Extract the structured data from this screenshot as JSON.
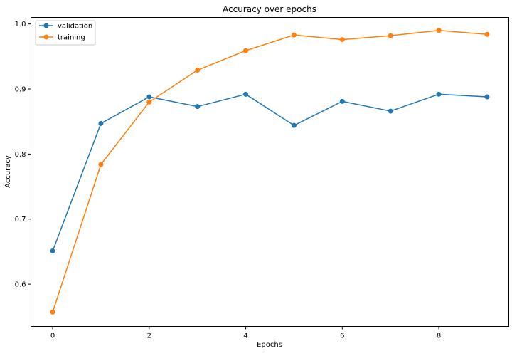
{
  "chart_data": {
    "type": "line",
    "title": "Accuracy over epochs",
    "xlabel": "Epochs",
    "ylabel": "Accuracy",
    "x": [
      0,
      1,
      2,
      3,
      4,
      5,
      6,
      7,
      8,
      9
    ],
    "xlim": [
      -0.45,
      9.45
    ],
    "ylim": [
      0.535,
      1.01
    ],
    "xticks": [
      0,
      2,
      4,
      6,
      8
    ],
    "yticks": [
      0.6,
      0.7,
      0.8,
      0.9,
      1.0
    ],
    "grid": false,
    "legend_position": "top-left",
    "series": [
      {
        "name": "validation",
        "color": "#1f77b4",
        "marker": "circle",
        "values": [
          0.651,
          0.847,
          0.888,
          0.873,
          0.892,
          0.844,
          0.881,
          0.866,
          0.892,
          0.888
        ]
      },
      {
        "name": "training",
        "color": "#ff7f0e",
        "marker": "circle",
        "values": [
          0.557,
          0.784,
          0.88,
          0.929,
          0.959,
          0.983,
          0.976,
          0.982,
          0.99,
          0.984
        ]
      }
    ]
  }
}
